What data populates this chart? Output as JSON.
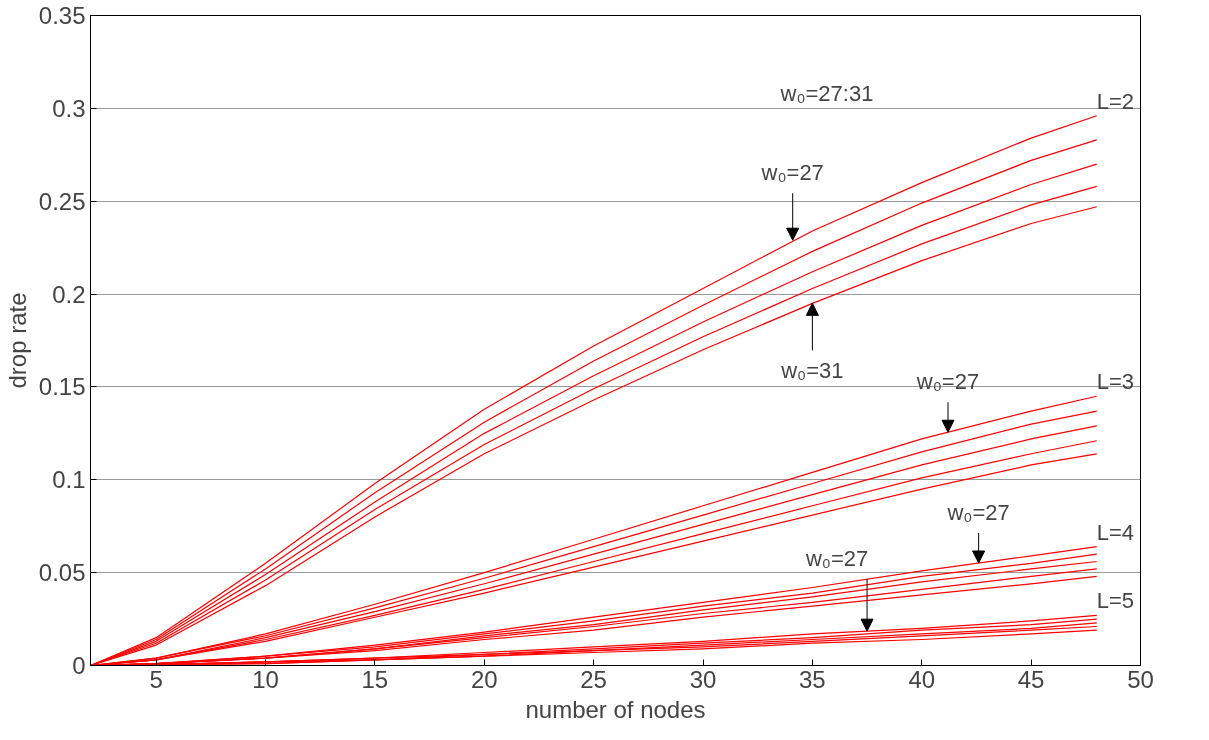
{
  "chart_data": {
    "type": "line",
    "xlabel": "number of nodes",
    "ylabel": "drop rate",
    "x": [
      2,
      5,
      10,
      15,
      20,
      25,
      30,
      35,
      40,
      45,
      48
    ],
    "series": [
      {
        "color": "#ff0000",
        "values": [
          0,
          0.015,
          0.055,
          0.098,
          0.138,
          0.172,
          0.203,
          0.234,
          0.26,
          0.284,
          0.296
        ]
      },
      {
        "color": "#ff0000",
        "values": [
          0,
          0.014,
          0.052,
          0.093,
          0.131,
          0.164,
          0.194,
          0.223,
          0.249,
          0.272,
          0.283
        ]
      },
      {
        "color": "#ff0000",
        "values": [
          0,
          0.013,
          0.049,
          0.088,
          0.125,
          0.156,
          0.185,
          0.212,
          0.237,
          0.259,
          0.27
        ]
      },
      {
        "color": "#ff0000",
        "values": [
          0,
          0.012,
          0.046,
          0.084,
          0.119,
          0.149,
          0.177,
          0.203,
          0.227,
          0.248,
          0.258
        ]
      },
      {
        "color": "#ff0000",
        "values": [
          0,
          0.011,
          0.043,
          0.08,
          0.114,
          0.143,
          0.17,
          0.195,
          0.218,
          0.238,
          0.247
        ]
      },
      {
        "color": "#ff0000",
        "values": [
          0,
          0.004,
          0.017,
          0.033,
          0.05,
          0.068,
          0.086,
          0.104,
          0.122,
          0.137,
          0.145
        ]
      },
      {
        "color": "#ff0000",
        "values": [
          0,
          0.004,
          0.016,
          0.031,
          0.047,
          0.064,
          0.081,
          0.098,
          0.115,
          0.13,
          0.137
        ]
      },
      {
        "color": "#ff0000",
        "values": [
          0,
          0.003,
          0.015,
          0.029,
          0.044,
          0.06,
          0.076,
          0.092,
          0.108,
          0.122,
          0.129
        ]
      },
      {
        "color": "#ff0000",
        "values": [
          0,
          0.003,
          0.014,
          0.027,
          0.041,
          0.056,
          0.071,
          0.086,
          0.101,
          0.114,
          0.121
        ]
      },
      {
        "color": "#ff0000",
        "values": [
          0,
          0.003,
          0.013,
          0.026,
          0.039,
          0.053,
          0.067,
          0.081,
          0.095,
          0.108,
          0.114
        ]
      },
      {
        "color": "#ff0000",
        "values": [
          0,
          0.001,
          0.005,
          0.011,
          0.018,
          0.026,
          0.034,
          0.042,
          0.051,
          0.059,
          0.064
        ]
      },
      {
        "color": "#ff0000",
        "values": [
          0,
          0.001,
          0.005,
          0.01,
          0.017,
          0.024,
          0.032,
          0.039,
          0.048,
          0.055,
          0.06
        ]
      },
      {
        "color": "#ff0000",
        "values": [
          0,
          0.001,
          0.004,
          0.009,
          0.016,
          0.022,
          0.03,
          0.037,
          0.045,
          0.052,
          0.056
        ]
      },
      {
        "color": "#ff0000",
        "values": [
          0,
          0.001,
          0.004,
          0.009,
          0.015,
          0.021,
          0.028,
          0.034,
          0.041,
          0.048,
          0.052
        ]
      },
      {
        "color": "#ff0000",
        "values": [
          0,
          0.001,
          0.004,
          0.008,
          0.014,
          0.019,
          0.026,
          0.032,
          0.038,
          0.044,
          0.048
        ]
      },
      {
        "color": "#ff0000",
        "values": [
          0,
          0.0005,
          0.002,
          0.004,
          0.007,
          0.01,
          0.013,
          0.017,
          0.02,
          0.024,
          0.027
        ]
      },
      {
        "color": "#ff0000",
        "values": [
          0,
          0.0005,
          0.002,
          0.004,
          0.006,
          0.009,
          0.012,
          0.015,
          0.019,
          0.022,
          0.025
        ]
      },
      {
        "color": "#ff0000",
        "values": [
          0,
          0.0005,
          0.002,
          0.003,
          0.006,
          0.008,
          0.011,
          0.014,
          0.017,
          0.02,
          0.023
        ]
      },
      {
        "color": "#ff0000",
        "values": [
          0,
          0.0005,
          0.001,
          0.003,
          0.005,
          0.008,
          0.01,
          0.013,
          0.016,
          0.019,
          0.021
        ]
      },
      {
        "color": "#ff0000",
        "values": [
          0,
          0.0005,
          0.001,
          0.003,
          0.005,
          0.007,
          0.009,
          0.012,
          0.014,
          0.017,
          0.019
        ]
      }
    ],
    "xlim": [
      2,
      50
    ],
    "xticks": [
      5,
      10,
      15,
      20,
      25,
      30,
      35,
      40,
      45,
      50
    ],
    "ylim": [
      0,
      0.35
    ],
    "yticks": [
      0,
      0.05,
      0.1,
      0.15,
      0.2,
      0.25,
      0.3,
      0.35
    ],
    "grid": "y",
    "line_style": "solid",
    "marker": "none",
    "annotations": [
      "w₀=27:31",
      {
        "text": "L=2",
        "x": 48,
        "y": 0.296
      },
      {
        "text": "L=3",
        "x": 48,
        "y": 0.145
      },
      {
        "text": "L=4",
        "x": 48,
        "y": 0.064
      },
      {
        "text": "L=5",
        "x": 48,
        "y": 0.027
      },
      {
        "text": "w₀=27",
        "x": 34.1,
        "y": 0.229
      },
      {
        "text": "w₀=31",
        "x": 35,
        "y": 0.195
      },
      {
        "text": "w₀=27",
        "x": 41.2,
        "y": 0.1256
      },
      {
        "text": "w₀=27",
        "x": 42.6,
        "y": 0.0552
      },
      {
        "text": "w₀=27",
        "x": 37.5,
        "y": 0.0185
      }
    ]
  }
}
